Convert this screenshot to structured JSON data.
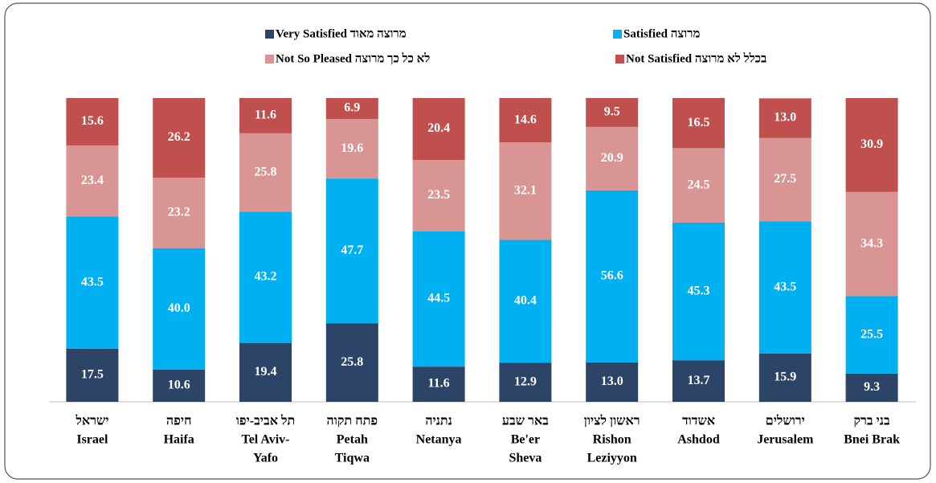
{
  "chart_data": {
    "type": "stacked_bar",
    "categories": [
      [
        "ישראל",
        "Israel"
      ],
      [
        "חיפה",
        "Haifa"
      ],
      [
        "תל אביב-יפו",
        "Tel Aviv-",
        "Yafo"
      ],
      [
        "פתח תקוה",
        "Petah",
        "Tiqwa"
      ],
      [
        "נתניה",
        "Netanya"
      ],
      [
        "באר שבע",
        "Be'er",
        "Sheva"
      ],
      [
        "ראשון לציון",
        "Rishon",
        "Leziyyon"
      ],
      [
        "אשדוד",
        "Ashdod"
      ],
      [
        "ירושלים",
        "Jerusalem"
      ],
      [
        "בני ברק",
        "Bnei Brak"
      ]
    ],
    "ylim": [
      0,
      100
    ],
    "series": [
      {
        "name": "Very Satisfied מרוצה מאוד",
        "color": "#2b4468",
        "values": [
          17.5,
          10.6,
          19.4,
          25.8,
          11.6,
          12.9,
          13.0,
          13.7,
          15.9,
          9.3
        ],
        "value_labels": [
          "17.5",
          "10.6",
          "19.4",
          "25.8",
          "11.6",
          "12.9",
          "13.0",
          "13.7",
          "15.9",
          "9.3"
        ]
      },
      {
        "name": "Satisfied מרוצה",
        "color": "#00b0f0",
        "values": [
          43.5,
          40.0,
          43.2,
          47.7,
          44.5,
          40.4,
          56.6,
          45.3,
          43.5,
          25.5
        ],
        "value_labels": [
          "43.5",
          "40.0",
          "43.2",
          "47.7",
          "44.5",
          "40.4",
          "56.6",
          "45.3",
          "43.5",
          "25.5"
        ]
      },
      {
        "name": "Not So Pleased לא כל כך מרוצה",
        "color": "#d99594",
        "values": [
          23.4,
          23.2,
          25.8,
          19.6,
          23.5,
          32.1,
          20.9,
          24.5,
          27.5,
          34.3
        ],
        "value_labels": [
          "23.4",
          "23.2",
          "25.8",
          "19.6",
          "23.5",
          "32.1",
          "20.9",
          "24.5",
          "27.5",
          "34.3"
        ]
      },
      {
        "name": "Not Satisfied בכלל לא מרוצה",
        "color": "#c0504d",
        "values": [
          15.6,
          26.2,
          11.6,
          6.9,
          20.4,
          14.6,
          9.5,
          16.5,
          13.0,
          30.9
        ],
        "value_labels": [
          "15.6",
          "26.2",
          "11.6",
          "6.9",
          "20.4",
          "14.6",
          "9.5",
          "16.5",
          "13.0",
          "30.9"
        ]
      }
    ]
  }
}
